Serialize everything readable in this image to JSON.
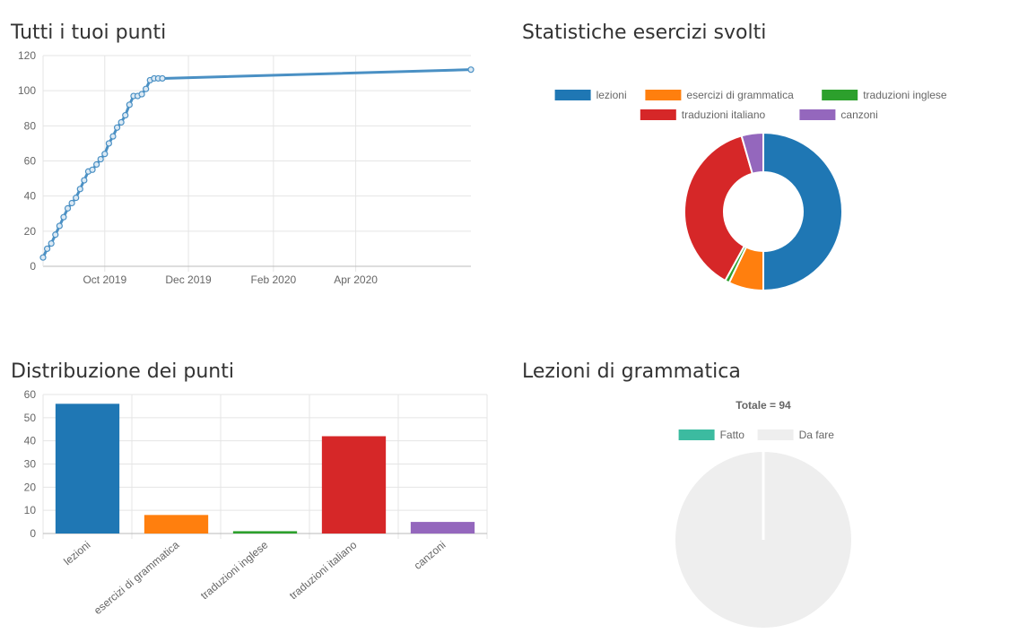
{
  "panels": {
    "points_over_time": {
      "title": "Tutti i tuoi punti"
    },
    "exercise_stats": {
      "title": "Statistiche esercizi svolti"
    },
    "points_distribution": {
      "title": "Distribuzione dei punti"
    },
    "grammar_lessons": {
      "title": "Lezioni di grammatica"
    }
  },
  "chart_data": [
    {
      "type": "line",
      "title": "Tutti i tuoi punti",
      "color": "#4a90c4",
      "x_ticks": [
        "Oct 2019",
        "Dec 2019",
        "Feb 2020",
        "Apr 2020"
      ],
      "y_ticks": [
        0,
        20,
        40,
        60,
        80,
        100,
        120
      ],
      "ylim": [
        0,
        120
      ],
      "xlim": [
        "2019-08-17",
        "2020-06-24"
      ],
      "grid": true,
      "x": [
        "2019-08-17",
        "2019-08-20",
        "2019-08-23",
        "2019-08-26",
        "2019-08-29",
        "2019-09-01",
        "2019-09-04",
        "2019-09-07",
        "2019-09-10",
        "2019-09-13",
        "2019-09-16",
        "2019-09-19",
        "2019-09-22",
        "2019-09-25",
        "2019-09-28",
        "2019-10-01",
        "2019-10-04",
        "2019-10-07",
        "2019-10-10",
        "2019-10-13",
        "2019-10-16",
        "2019-10-19",
        "2019-10-22",
        "2019-10-25",
        "2019-10-28",
        "2019-10-31",
        "2019-11-03",
        "2019-11-06",
        "2019-11-09",
        "2019-11-12",
        "2020-06-24"
      ],
      "y": [
        5,
        10,
        13,
        18,
        23,
        28,
        33,
        36,
        39,
        44,
        49,
        54,
        55,
        58,
        61,
        64,
        70,
        74,
        79,
        82,
        86,
        92,
        97,
        97,
        98,
        101,
        106,
        107,
        107,
        107,
        112
      ]
    },
    {
      "type": "pie",
      "variant": "doughnut",
      "title": "Statistiche esercizi svolti",
      "legend_position": "top",
      "categories": [
        "lezioni",
        "esercizi di grammatica",
        "traduzioni inglese",
        "traduzioni italiano",
        "canzoni"
      ],
      "values": [
        56,
        8,
        1,
        42,
        5
      ],
      "colors": [
        "#1f77b4",
        "#ff7f0e",
        "#2ca02c",
        "#d62728",
        "#9467bd"
      ]
    },
    {
      "type": "bar",
      "title": "Distribuzione dei punti",
      "categories": [
        "lezioni",
        "esercizi di grammatica",
        "traduzioni inglese",
        "traduzioni italiano",
        "canzoni"
      ],
      "values": [
        56,
        8,
        1,
        42,
        5
      ],
      "colors": [
        "#1f77b4",
        "#ff7f0e",
        "#2ca02c",
        "#d62728",
        "#9467bd"
      ],
      "ylim": [
        0,
        60
      ],
      "y_ticks": [
        0,
        10,
        20,
        30,
        40,
        50,
        60
      ],
      "grid": true
    },
    {
      "type": "pie",
      "title": "Lezioni di grammatica",
      "subtitle": "Totale = 94",
      "legend_position": "top",
      "categories": [
        "Fatto",
        "Da fare"
      ],
      "values": [
        0,
        94
      ],
      "colors": [
        "#3cbba0",
        "#eeeeee"
      ]
    }
  ]
}
